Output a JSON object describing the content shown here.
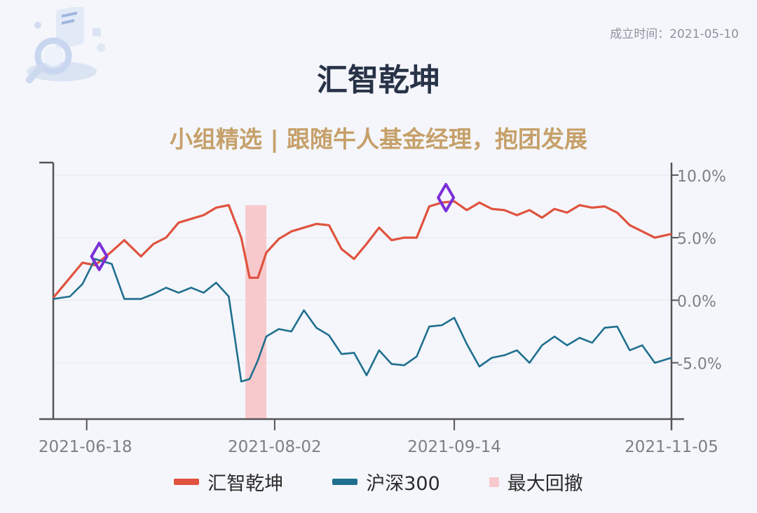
{
  "header": {
    "founded": "成立时间：2021-05-10",
    "title": "汇智乾坤",
    "subtitle": "小组精选 | 跟随牛人基金经理，抱团发展"
  },
  "colors": {
    "fund": "#e0523e",
    "index": "#1f6f8e",
    "drawdown": "#f7c9cd",
    "marker": "#7b2fd8"
  },
  "icons": [
    "magnifier-document-illustration"
  ],
  "legend": {
    "fund": "汇智乾坤",
    "index": "沪深300",
    "drawdown": "最大回撤"
  },
  "chart_data": {
    "type": "line",
    "x_range": [
      "2021-06-10",
      "2021-11-05"
    ],
    "xticks": [
      "2021-06-18",
      "2021-08-02",
      "2021-09-14",
      "2021-11-05"
    ],
    "yticks": [
      "10.0%",
      "5.0%",
      "0.0%",
      "-5.0%"
    ],
    "yticks_values": [
      10,
      5,
      0,
      -5
    ],
    "ylim": [
      -9.5,
      11
    ],
    "grid": true,
    "legend_position": "bottom-center",
    "series": [
      {
        "name": "汇智乾坤",
        "x": [
          "2021-06-10",
          "2021-06-14",
          "2021-06-17",
          "2021-06-20",
          "2021-06-24",
          "2021-06-27",
          "2021-07-01",
          "2021-07-04",
          "2021-07-07",
          "2021-07-10",
          "2021-07-13",
          "2021-07-16",
          "2021-07-19",
          "2021-07-22",
          "2021-07-25",
          "2021-07-27",
          "2021-07-29",
          "2021-07-31",
          "2021-08-03",
          "2021-08-06",
          "2021-08-09",
          "2021-08-12",
          "2021-08-15",
          "2021-08-18",
          "2021-08-21",
          "2021-08-24",
          "2021-08-27",
          "2021-08-30",
          "2021-09-02",
          "2021-09-05",
          "2021-09-08",
          "2021-09-11",
          "2021-09-14",
          "2021-09-17",
          "2021-09-20",
          "2021-09-23",
          "2021-09-26",
          "2021-09-29",
          "2021-10-02",
          "2021-10-05",
          "2021-10-08",
          "2021-10-11",
          "2021-10-14",
          "2021-10-17",
          "2021-10-20",
          "2021-10-23",
          "2021-10-26",
          "2021-10-29",
          "2021-11-01",
          "2021-11-05"
        ],
        "values": [
          0.2,
          1.8,
          3.0,
          2.8,
          3.9,
          4.8,
          3.5,
          4.5,
          5.0,
          6.2,
          6.5,
          6.8,
          7.4,
          7.6,
          5.0,
          1.8,
          1.8,
          3.8,
          4.9,
          5.5,
          5.8,
          6.1,
          6.0,
          4.1,
          3.3,
          4.5,
          5.8,
          4.8,
          5.0,
          5.0,
          7.5,
          7.8,
          7.9,
          7.2,
          7.8,
          7.3,
          7.2,
          6.8,
          7.2,
          6.6,
          7.3,
          7.0,
          7.6,
          7.4,
          7.5,
          7.0,
          6.0,
          5.5,
          5.0,
          5.3
        ]
      },
      {
        "name": "沪深300",
        "x": [
          "2021-06-10",
          "2021-06-14",
          "2021-06-17",
          "2021-06-20",
          "2021-06-24",
          "2021-06-27",
          "2021-07-01",
          "2021-07-04",
          "2021-07-07",
          "2021-07-10",
          "2021-07-13",
          "2021-07-16",
          "2021-07-19",
          "2021-07-22",
          "2021-07-25",
          "2021-07-27",
          "2021-07-29",
          "2021-07-31",
          "2021-08-03",
          "2021-08-06",
          "2021-08-09",
          "2021-08-12",
          "2021-08-15",
          "2021-08-18",
          "2021-08-21",
          "2021-08-24",
          "2021-08-27",
          "2021-08-30",
          "2021-09-02",
          "2021-09-05",
          "2021-09-08",
          "2021-09-11",
          "2021-09-14",
          "2021-09-17",
          "2021-09-20",
          "2021-09-23",
          "2021-09-26",
          "2021-09-29",
          "2021-10-02",
          "2021-10-05",
          "2021-10-08",
          "2021-10-11",
          "2021-10-14",
          "2021-10-17",
          "2021-10-20",
          "2021-10-23",
          "2021-10-26",
          "2021-10-29",
          "2021-11-01",
          "2021-11-05"
        ],
        "values": [
          0.1,
          0.3,
          1.3,
          3.3,
          2.9,
          0.1,
          0.1,
          0.5,
          1.0,
          0.6,
          1.0,
          0.6,
          1.4,
          0.3,
          -6.5,
          -6.3,
          -4.8,
          -2.9,
          -2.3,
          -2.5,
          -0.8,
          -2.2,
          -2.8,
          -4.3,
          -4.2,
          -6.0,
          -4.0,
          -5.1,
          -5.2,
          -4.5,
          -2.1,
          -2.0,
          -1.4,
          -3.5,
          -5.3,
          -4.6,
          -4.4,
          -4.0,
          -5.0,
          -3.6,
          -2.9,
          -3.6,
          -3.0,
          -3.4,
          -2.2,
          -2.1,
          -4.0,
          -3.6,
          -5.0,
          -4.6
        ]
      }
    ],
    "drawdown_range": [
      "2021-07-26",
      "2021-07-31"
    ],
    "markers": [
      {
        "x": "2021-06-21",
        "y": 3.5
      },
      {
        "x": "2021-09-12",
        "y": 8.2
      }
    ]
  }
}
